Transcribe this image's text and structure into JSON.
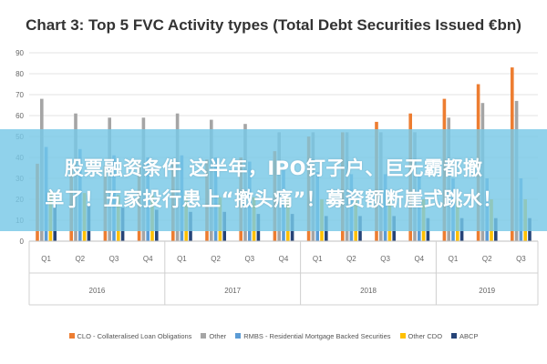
{
  "chart_data": {
    "type": "bar",
    "title": "Chart 3: Top 5 FVC Activity types (Total Debt Securities Issued €bn)",
    "xlabel": "",
    "ylabel": "",
    "ylim": [
      0,
      90
    ],
    "yticks": [
      0,
      10,
      20,
      30,
      40,
      50,
      60,
      70,
      80,
      90
    ],
    "grid": true,
    "legend_position": "bottom",
    "categories": [
      "Q1",
      "Q2",
      "Q3",
      "Q4",
      "Q1",
      "Q2",
      "Q3",
      "Q4",
      "Q1",
      "Q2",
      "Q3",
      "Q4",
      "Q1",
      "Q2",
      "Q3"
    ],
    "groups": [
      {
        "label": "2016",
        "count": 4
      },
      {
        "label": "2017",
        "count": 4
      },
      {
        "label": "2018",
        "count": 4
      },
      {
        "label": "2019",
        "count": 3
      }
    ],
    "series": [
      {
        "name": "CLO - Collateralised Loan Obligations",
        "color": "#ED7D31",
        "values": [
          37,
          36,
          36,
          37,
          38,
          39,
          40,
          43,
          50,
          52,
          57,
          61,
          68,
          75,
          83
        ]
      },
      {
        "name": "Other",
        "color": "#A5A5A5",
        "values": [
          68,
          61,
          59,
          59,
          61,
          58,
          56,
          52,
          52,
          52,
          52,
          52,
          59,
          66,
          67
        ]
      },
      {
        "name": "RMBS - Residential Mortgage Backed Securities",
        "color": "#5B9BD5",
        "values": [
          45,
          44,
          41,
          40,
          41,
          40,
          38,
          35,
          33,
          32,
          32,
          31,
          30,
          30,
          30
        ]
      },
      {
        "name": "Other CDO",
        "color": "#FFC000",
        "values": [
          24,
          23,
          22,
          22,
          22,
          21,
          21,
          21,
          20,
          20,
          20,
          20,
          20,
          20,
          20
        ]
      },
      {
        "name": "ABCP",
        "color": "#264478",
        "values": [
          18,
          17,
          16,
          15,
          14,
          14,
          13,
          13,
          12,
          12,
          12,
          11,
          11,
          11,
          11
        ]
      }
    ]
  },
  "banner": {
    "line1": "股票融资条件 这半年，IPO钉子户、巨无霸都撤",
    "line2": "单了！五家投行患上“撤头痛”！募资额断崖式跳水！"
  }
}
